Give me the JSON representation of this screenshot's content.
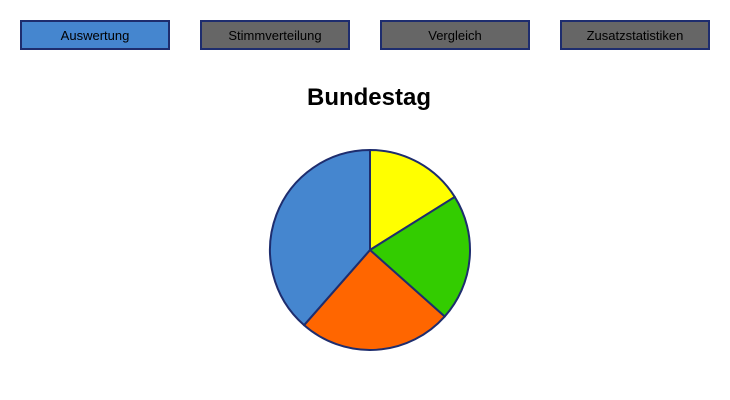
{
  "tabs": [
    {
      "label": "Auswertung",
      "active": true
    },
    {
      "label": "Stimmverteilung",
      "active": false
    },
    {
      "label": "Vergleich",
      "active": false
    },
    {
      "label": "Zusatzstatistiken",
      "active": false
    }
  ],
  "page": {
    "title": "Bundestag"
  },
  "colors": {
    "active_tab": "#4586cf",
    "inactive_tab": "#666666",
    "border": "#1e2d6e"
  },
  "chart_data": {
    "type": "pie",
    "values": [
      16.5,
      21,
      25.5,
      39.5
    ],
    "colors": [
      "#ffff00",
      "#33cc00",
      "#ff6600",
      "#4586cf"
    ],
    "start_angle_deg": 0,
    "direction": "clockwise"
  }
}
